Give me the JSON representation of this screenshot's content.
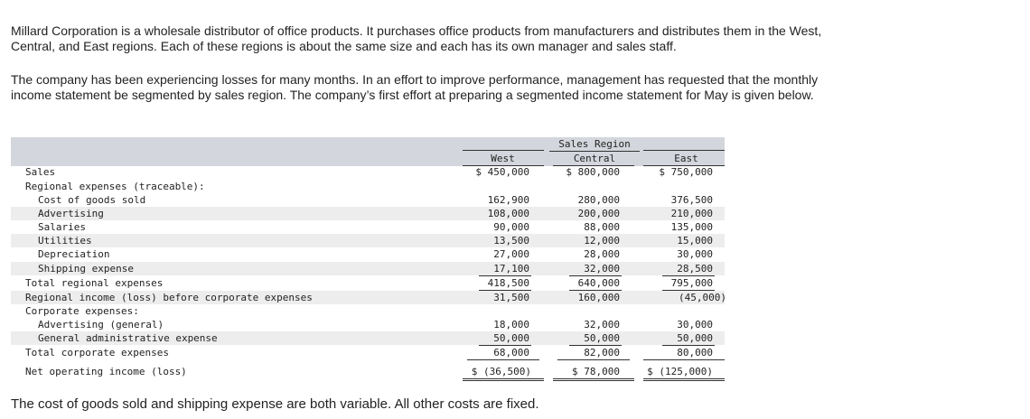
{
  "intro": {
    "paragraph1": "Millard Corporation is a wholesale distributor of office products. It purchases office products from manufacturers and distributes them in the West, Central, and East regions. Each of these regions is about the same size and each has its own manager and sales staff.",
    "paragraph2": "The company has been experiencing losses for many months. In an effort to improve performance, management has requested that the monthly income statement be segmented by sales region. The company’s first effort at preparing a segmented income statement for May is given below."
  },
  "table": {
    "group_header": "Sales Region",
    "columns": [
      "West",
      "Central",
      "East"
    ],
    "sales": {
      "label": "Sales",
      "values": [
        "$ 450,000",
        "$ 800,000",
        "$ 750,000"
      ]
    },
    "regional_header": "Regional expenses (traceable):",
    "regional_rows": [
      {
        "label": "Cost of goods sold",
        "values": [
          "162,900",
          "280,000",
          "376,500"
        ]
      },
      {
        "label": "Advertising",
        "values": [
          "108,000",
          "200,000",
          "210,000"
        ]
      },
      {
        "label": "Salaries",
        "values": [
          "90,000",
          "88,000",
          "135,000"
        ]
      },
      {
        "label": "Utilities",
        "values": [
          "13,500",
          "12,000",
          "15,000"
        ]
      },
      {
        "label": "Depreciation",
        "values": [
          "27,000",
          "28,000",
          "30,000"
        ]
      },
      {
        "label": "Shipping expense",
        "values": [
          "17,100",
          "32,000",
          "28,500"
        ]
      }
    ],
    "total_regional": {
      "label": "Total regional expenses",
      "values": [
        "418,500",
        "640,000",
        "795,000"
      ]
    },
    "regional_income": {
      "label": "Regional income (loss) before corporate expenses",
      "values": [
        "31,500",
        "160,000",
        "(45,000)"
      ]
    },
    "corporate_header": "Corporate expenses:",
    "corporate_rows": [
      {
        "label": "Advertising (general)",
        "values": [
          "18,000",
          "32,000",
          "30,000"
        ]
      },
      {
        "label": "General administrative expense",
        "values": [
          "50,000",
          "50,000",
          "50,000"
        ]
      }
    ],
    "total_corporate": {
      "label": "Total corporate expenses",
      "values": [
        "68,000",
        "82,000",
        "80,000"
      ]
    },
    "net_income": {
      "label": "Net operating income (loss)",
      "values": [
        "$ (36,500)",
        "$ 78,000",
        "$ (125,000)"
      ]
    }
  },
  "footer": "The cost of goods sold and shipping expense are both variable. All other costs are fixed."
}
